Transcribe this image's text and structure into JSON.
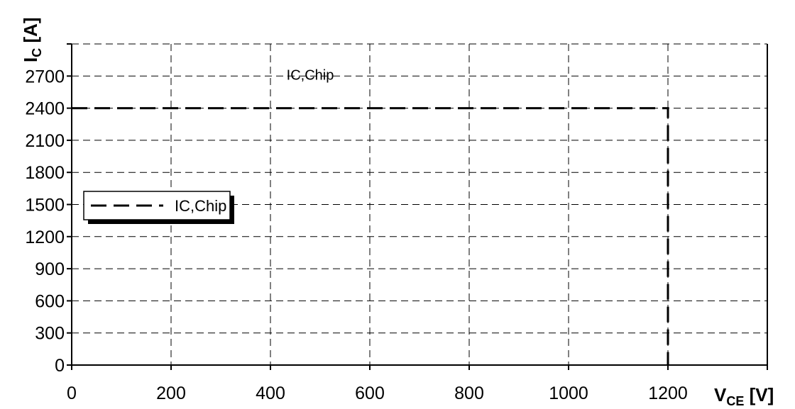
{
  "chart_data": {
    "type": "line",
    "title": "",
    "xlabel": {
      "main": "V",
      "sub": "CE",
      "unit": "[V]"
    },
    "ylabel": {
      "main": "I",
      "sub": "C",
      "unit": "[A]"
    },
    "xlim": [
      0,
      1400
    ],
    "ylim": [
      0,
      3000
    ],
    "xticks": [
      0,
      200,
      400,
      600,
      800,
      1000,
      1200
    ],
    "xtick_labels": [
      "0",
      "200",
      "400",
      "600",
      "800",
      "1000",
      "1200"
    ],
    "yticks": [
      0,
      300,
      600,
      900,
      1200,
      1500,
      1800,
      2100,
      2400,
      2700
    ],
    "ytick_labels": [
      "0",
      "300",
      "600",
      "900",
      "1200",
      "1500",
      "1800",
      "2100",
      "2400",
      "2700"
    ],
    "grid": true,
    "legend_position": "left",
    "series": [
      {
        "name": "IC,Chip",
        "style": "dashed",
        "color": "#000000",
        "points": [
          [
            0,
            2400
          ],
          [
            1200,
            2400
          ],
          [
            1200,
            0
          ]
        ]
      }
    ],
    "annotations": [
      {
        "text": "IC,Chip",
        "x": 480,
        "y": 2700
      }
    ]
  }
}
